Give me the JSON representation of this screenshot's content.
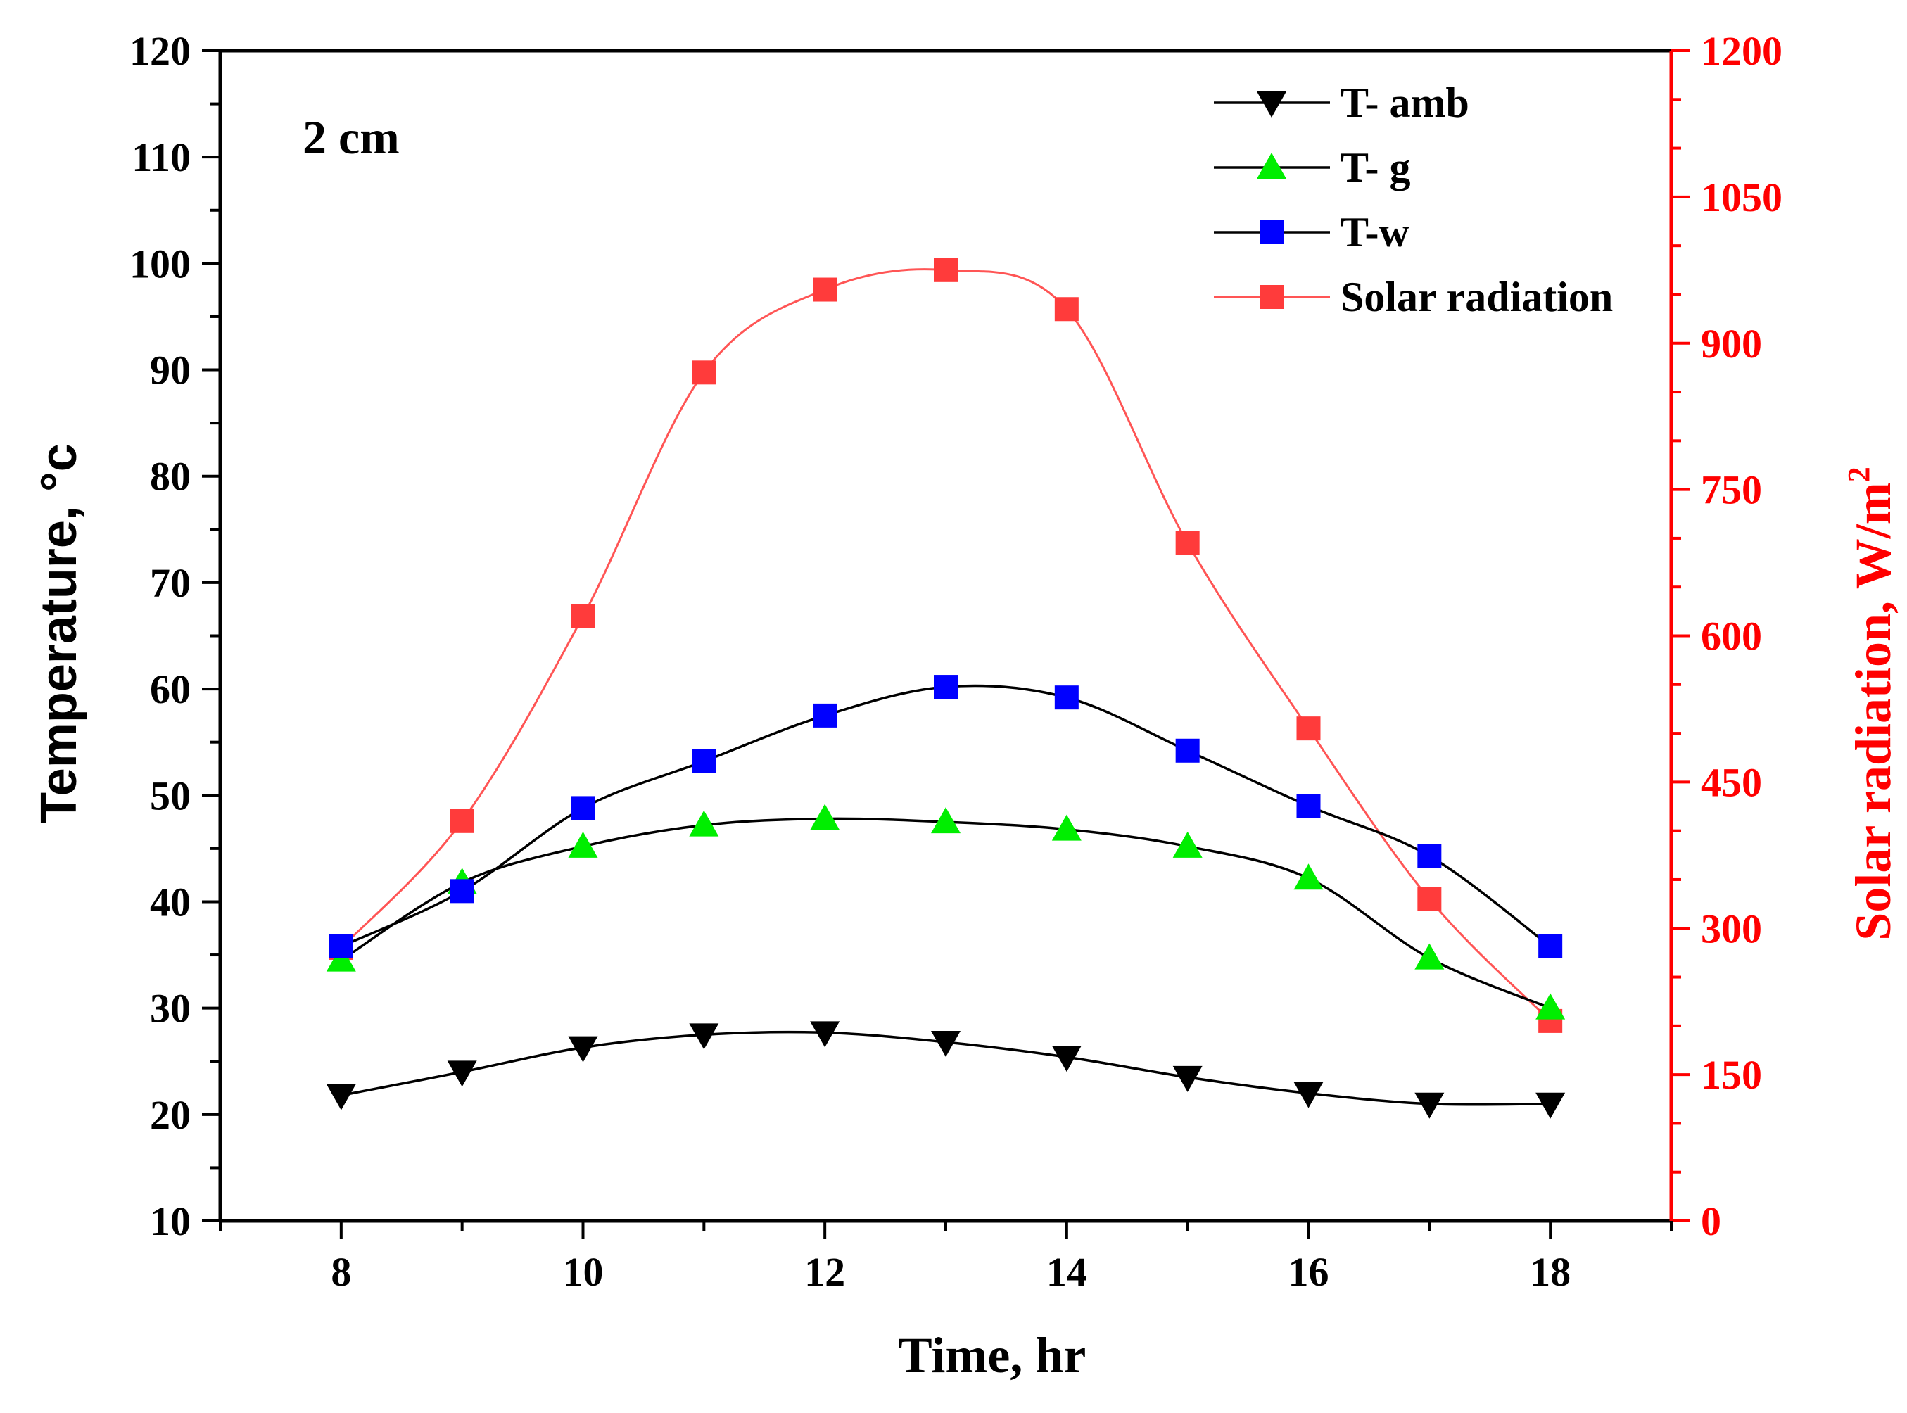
{
  "chart_data": {
    "type": "line",
    "annotation": "2 cm",
    "xlabel": "Time, hr",
    "ylabel_left": "Temperature, °c",
    "ylabel_right_main": "Solar radiation, W/m",
    "ylabel_right_sup": "2",
    "xlim": [
      7,
      19
    ],
    "xticks": [
      8,
      10,
      12,
      14,
      16,
      18
    ],
    "ylim_left": [
      10,
      120
    ],
    "yticks_left": [
      10,
      20,
      30,
      40,
      50,
      60,
      70,
      80,
      90,
      100,
      110,
      120
    ],
    "ylim_right": [
      0,
      1200
    ],
    "yticks_right": [
      0,
      150,
      300,
      450,
      600,
      750,
      900,
      1050,
      1200
    ],
    "legend_position": "top-right",
    "grid": false,
    "x": [
      8,
      9,
      10,
      11,
      12,
      13,
      14,
      15,
      16,
      17,
      18
    ],
    "series": [
      {
        "name": "T- amb",
        "axis": "left",
        "marker": "triangle-down",
        "color": "#000000",
        "line_color": "#000000",
        "values": [
          21.8,
          24,
          26.3,
          27.5,
          27.7,
          26.8,
          25.4,
          23.5,
          22,
          21,
          21
        ]
      },
      {
        "name": "T- g",
        "axis": "left",
        "marker": "triangle-up",
        "color": "#00ee00",
        "line_color": "#000000",
        "values": [
          34.5,
          41.8,
          45.2,
          47.2,
          47.8,
          47.5,
          46.8,
          45.2,
          42.2,
          34.7,
          30
        ]
      },
      {
        "name": "T-w",
        "axis": "left",
        "marker": "square",
        "color": "#0000ff",
        "line_color": "#000000",
        "values": [
          35.8,
          41,
          48.8,
          53.2,
          57.5,
          60.2,
          59.2,
          54.2,
          49,
          44.3,
          35.8
        ]
      },
      {
        "name": "Solar radiation",
        "axis": "right",
        "marker": "square",
        "color": "#ff3b3b",
        "line_color": "#ff5555",
        "values": [
          280,
          410,
          620,
          870,
          955,
          975,
          935,
          695,
          505,
          330,
          205
        ]
      }
    ],
    "colors": {
      "axis": "#000000",
      "right_axis": "#ff0000"
    }
  }
}
